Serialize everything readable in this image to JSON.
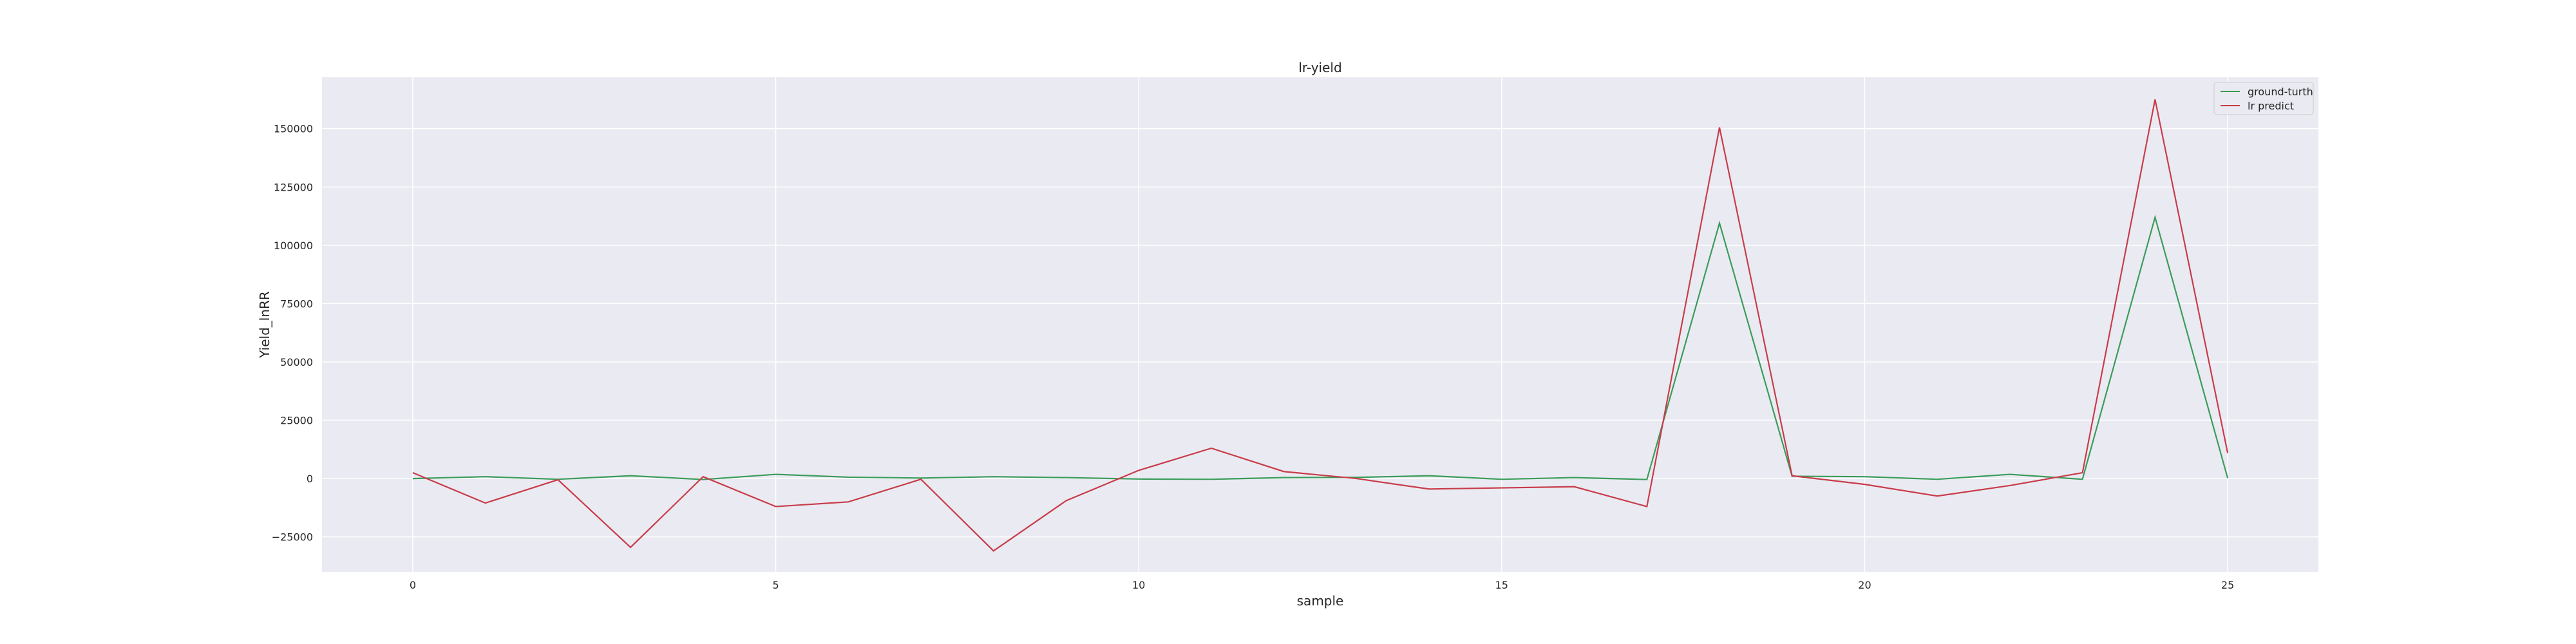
{
  "chart_data": {
    "type": "line",
    "title": "lr-yield",
    "xlabel": "sample",
    "ylabel": "Yield_lnRR",
    "xlim": [
      -1.25,
      26.25
    ],
    "ylim": [
      -40000,
      172000
    ],
    "xticks": [
      0,
      5,
      10,
      15,
      20,
      25
    ],
    "yticks": [
      -25000,
      0,
      25000,
      50000,
      75000,
      100000,
      125000,
      150000
    ],
    "ytick_labels": [
      "−25000",
      "0",
      "25000",
      "50000",
      "75000",
      "100000",
      "125000",
      "150000"
    ],
    "grid": true,
    "background": "#eaeaf2",
    "legend_position": "top-right",
    "x": [
      0,
      1,
      2,
      3,
      4,
      5,
      6,
      7,
      8,
      9,
      10,
      11,
      12,
      13,
      14,
      15,
      16,
      17,
      18,
      19,
      20,
      21,
      22,
      23,
      24,
      25
    ],
    "series": [
      {
        "name": "ground-turth",
        "color": "#3a9c5a",
        "values": [
          0,
          800,
          -300,
          1200,
          -400,
          1800,
          600,
          200,
          800,
          400,
          -200,
          -300,
          400,
          500,
          1200,
          -300,
          400,
          -400,
          109500,
          1000,
          800,
          -300,
          1800,
          -300,
          112000,
          200
        ]
      },
      {
        "name": "lr predict",
        "color": "#c83c4a",
        "values": [
          2500,
          -10500,
          -500,
          -29500,
          800,
          -12000,
          -10000,
          -300,
          -31000,
          -9500,
          3500,
          13000,
          3000,
          0,
          -4500,
          -4000,
          -3500,
          -12000,
          150500,
          1200,
          -2500,
          -7500,
          -3000,
          2500,
          162500,
          11000
        ]
      }
    ]
  }
}
